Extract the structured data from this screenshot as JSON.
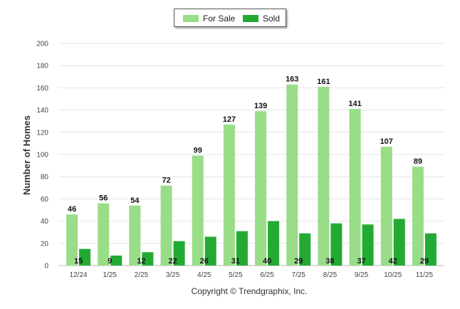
{
  "chart_data": {
    "type": "bar",
    "ylabel": "Number of Homes",
    "ylim": [
      0,
      200
    ],
    "yticks": [
      0,
      20,
      40,
      60,
      80,
      100,
      120,
      140,
      160,
      180,
      200
    ],
    "grid": true,
    "legend_position": "top-center",
    "categories": [
      "12/24",
      "1/25",
      "2/25",
      "3/25",
      "4/25",
      "5/25",
      "6/25",
      "7/25",
      "8/25",
      "9/25",
      "10/25",
      "11/25"
    ],
    "series": [
      {
        "name": "For Sale",
        "color": "#99dd88",
        "values": [
          46,
          56,
          54,
          72,
          99,
          127,
          139,
          163,
          161,
          141,
          107,
          89
        ]
      },
      {
        "name": "Sold",
        "color": "#22aa33",
        "values": [
          15,
          9,
          12,
          22,
          26,
          31,
          40,
          29,
          38,
          37,
          42,
          29
        ]
      }
    ]
  },
  "footer": {
    "copyright": "Copyright © Trendgraphix, Inc."
  }
}
